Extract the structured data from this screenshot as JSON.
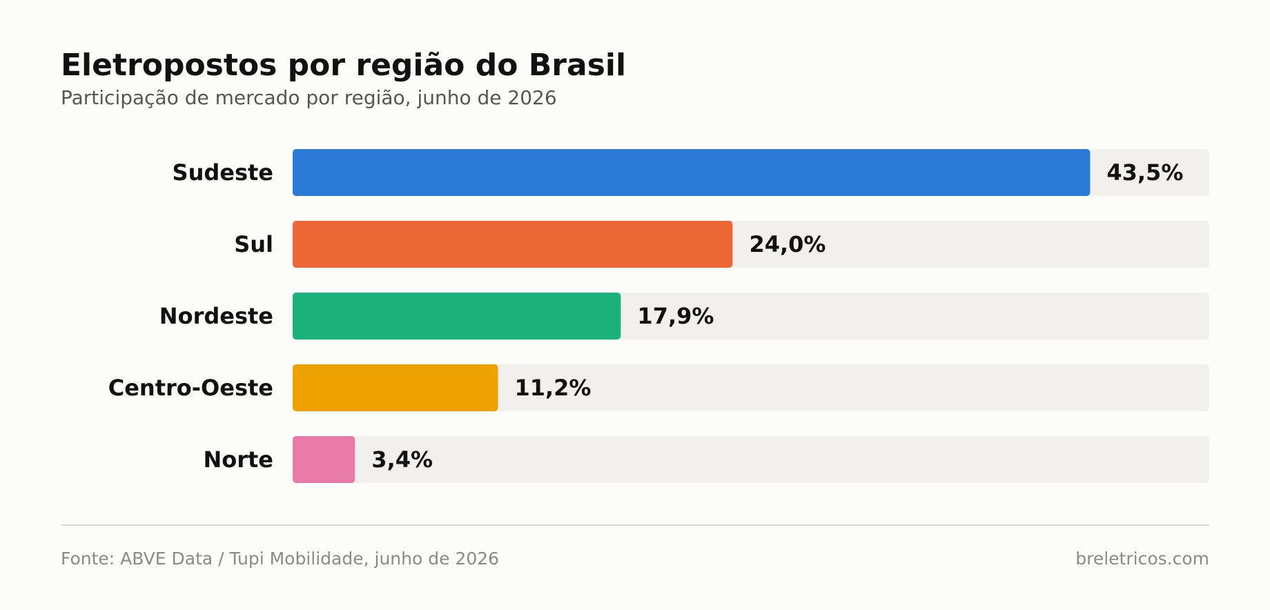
{
  "header": {
    "title": "Eletropostos por região do Brasil",
    "subtitle": "Participação de mercado por região, junho de 2026"
  },
  "chart_data": {
    "type": "bar",
    "orientation": "horizontal",
    "title": "Eletropostos por região do Brasil",
    "subtitle": "Participação de mercado por região, junho de 2026",
    "categories": [
      "Sudeste",
      "Sul",
      "Nordeste",
      "Centro-Oeste",
      "Norte"
    ],
    "values": [
      43.5,
      24.0,
      17.9,
      11.2,
      3.4
    ],
    "value_labels": [
      "43,5%",
      "24,0%",
      "17,9%",
      "11,2%",
      "3,4%"
    ],
    "colors": [
      "#2979d6",
      "#eb6836",
      "#1db17b",
      "#eea200",
      "#e87ba5"
    ],
    "track_color": "#f1f0ed",
    "xlim": [
      0,
      50
    ],
    "xlabel": "",
    "ylabel": "",
    "grid": false,
    "legend": "none"
  },
  "footer": {
    "source": "Fonte: ABVE Data / Tupi Mobilidade, junho de 2026",
    "brand": "breletricos.com"
  }
}
